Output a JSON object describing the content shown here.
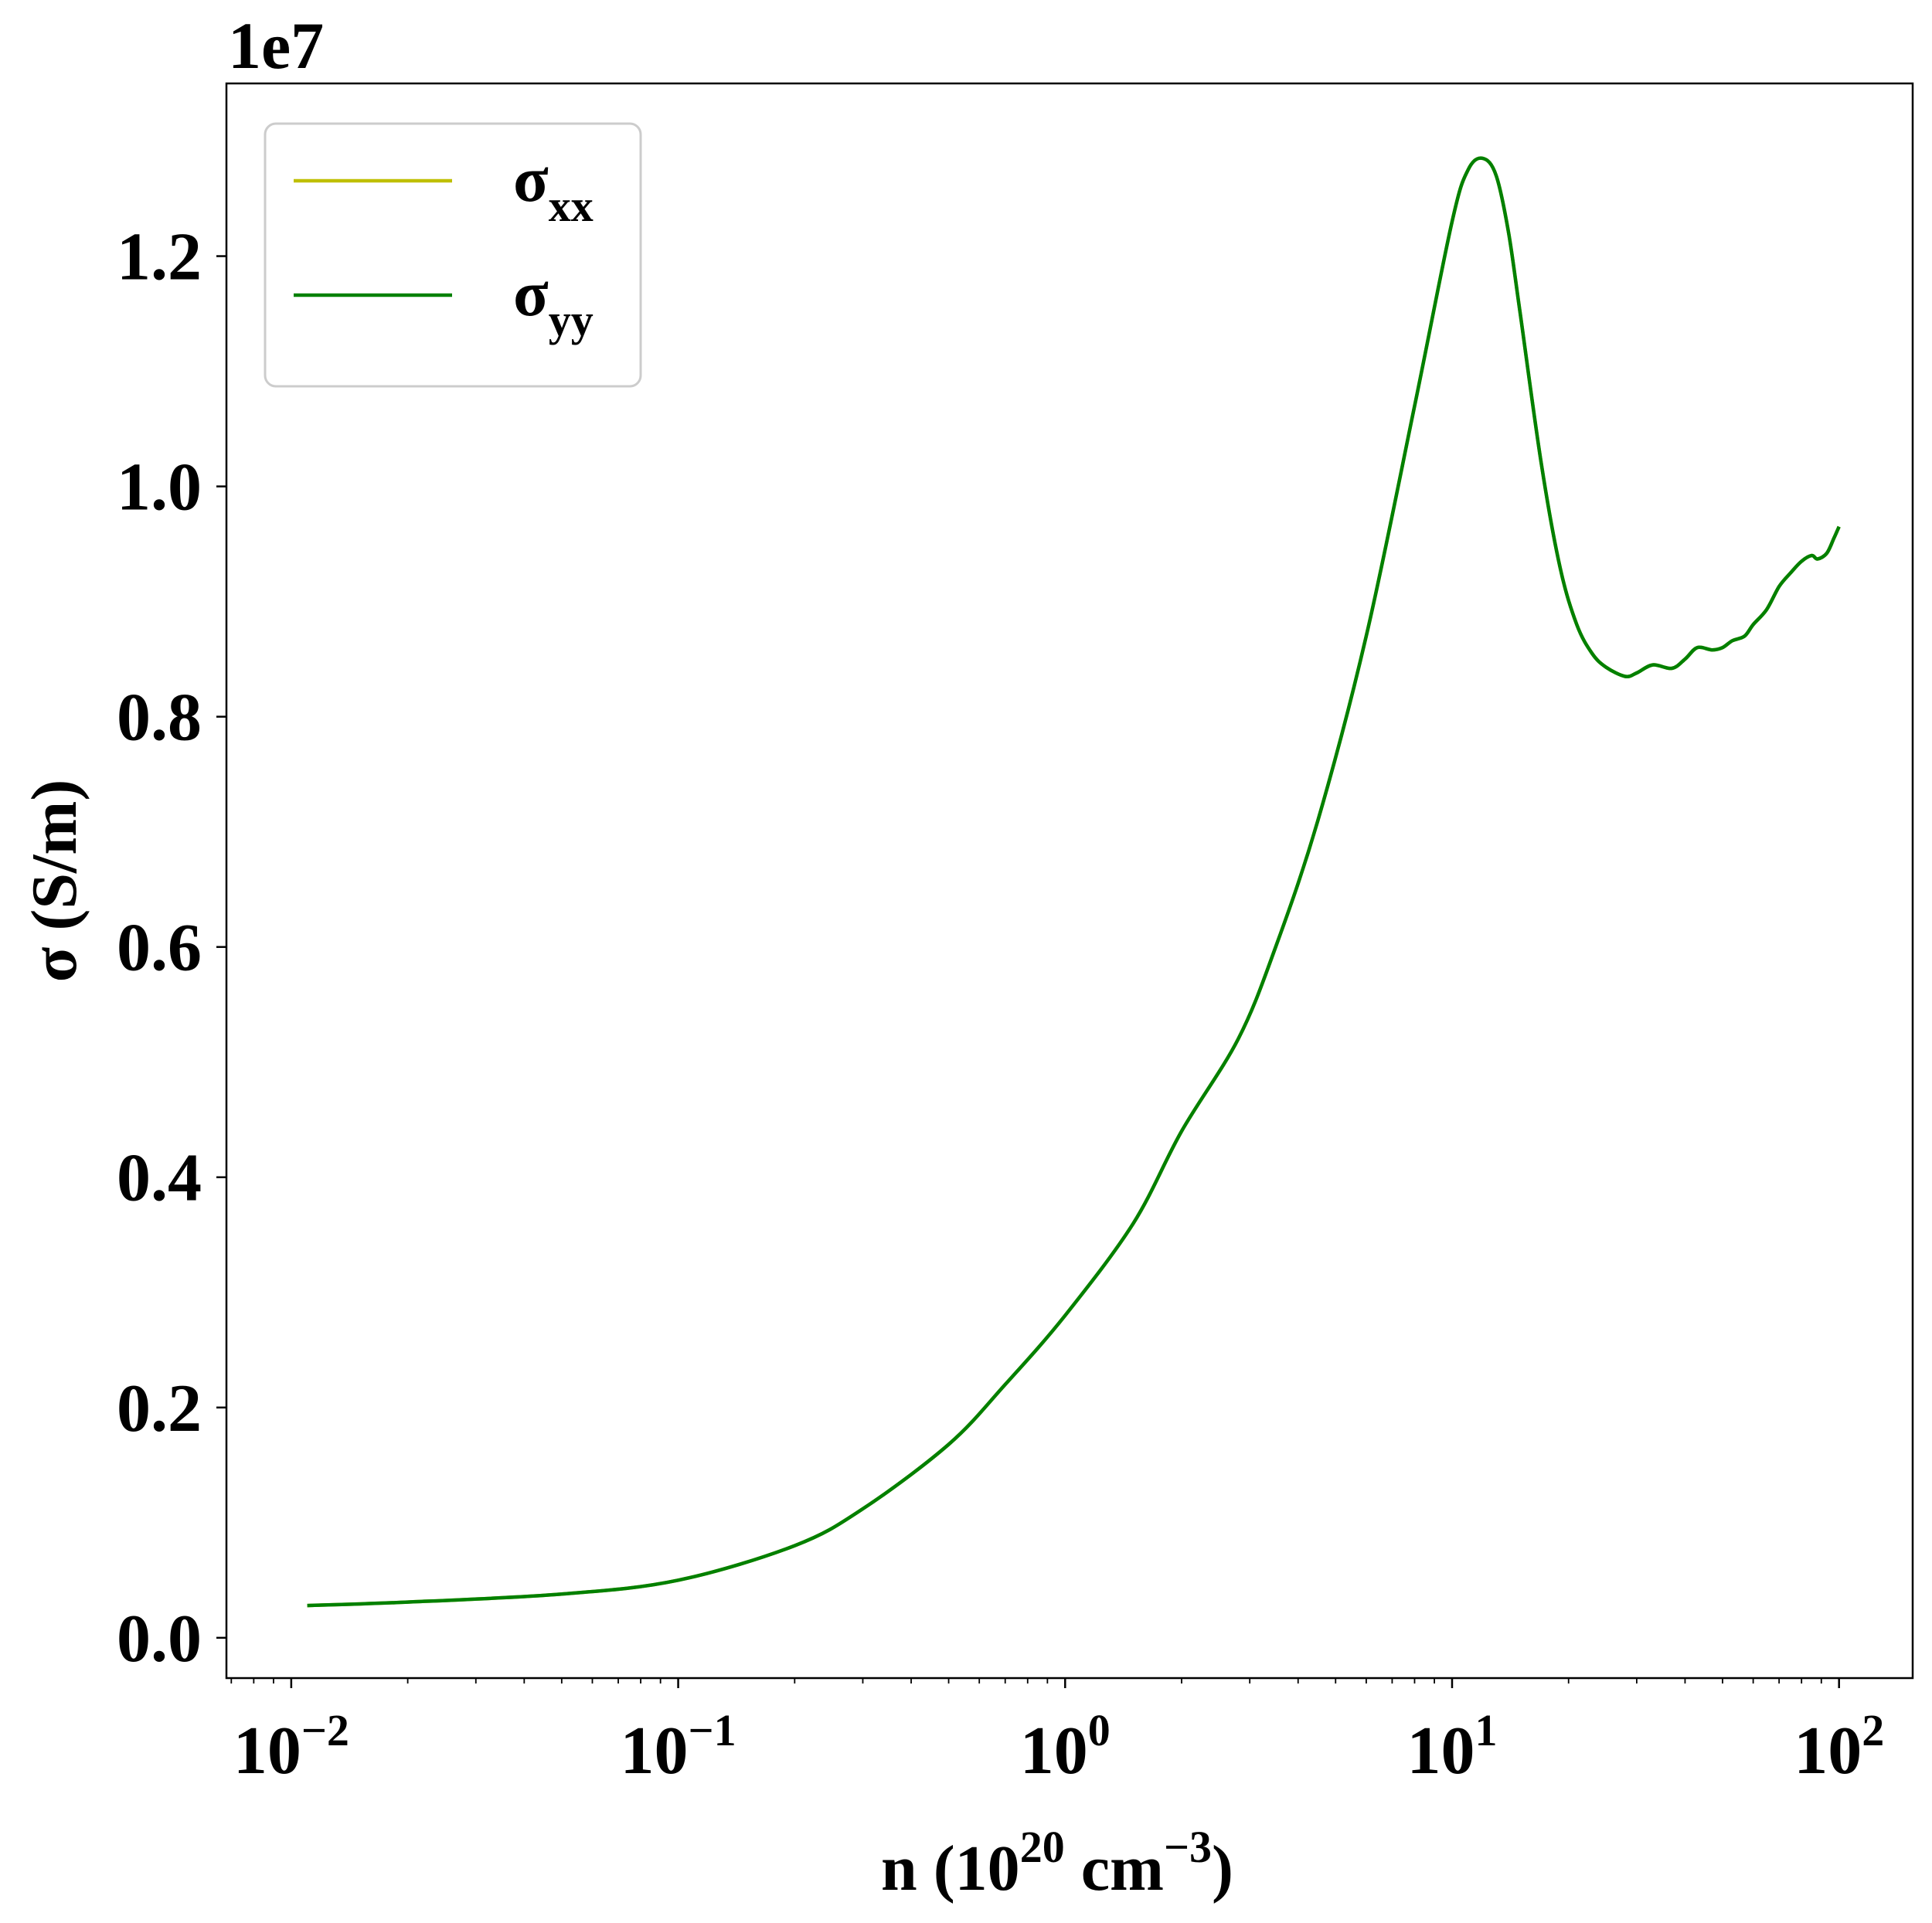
{
  "chart_data": {
    "type": "line",
    "title": "",
    "offset_label": "1e7",
    "xlabel": {
      "prefix": "n (10",
      "exp": "20",
      "middle": " cm",
      "exp2": "−3",
      "suffix": ")"
    },
    "ylabel": "σ (S/m)",
    "xscale": "log",
    "xlim": [
      0.0068,
      155
    ],
    "ylim": [
      -0.035,
      1.35
    ],
    "y_multiplier": 10000000,
    "x_ticks": [
      {
        "value": 0.01,
        "base": "10",
        "exp": "−2"
      },
      {
        "value": 0.1,
        "base": "10",
        "exp": "−1"
      },
      {
        "value": 1,
        "base": "10",
        "exp": "0"
      },
      {
        "value": 10,
        "base": "10",
        "exp": "1"
      },
      {
        "value": 100,
        "base": "10",
        "exp": "2"
      }
    ],
    "y_ticks": [
      {
        "value": 0.0,
        "label": "0.0"
      },
      {
        "value": 0.2,
        "label": "0.2"
      },
      {
        "value": 0.4,
        "label": "0.4"
      },
      {
        "value": 0.6,
        "label": "0.6"
      },
      {
        "value": 0.8,
        "label": "0.8"
      },
      {
        "value": 1.0,
        "label": "1.0"
      },
      {
        "value": 1.2,
        "label": "1.2"
      }
    ],
    "legend": {
      "placement": "top-left"
    },
    "grid": false,
    "series": [
      {
        "name": "σxx",
        "name_base": "σ",
        "name_sub": "xx",
        "color": "#bfbf00",
        "x": [
          0.011,
          0.02,
          0.05,
          0.1,
          0.2,
          0.3,
          0.5,
          0.7,
          1.0,
          1.5,
          2.0,
          2.8,
          3.5,
          4.5,
          6.0,
          8.0,
          10.0,
          11.0,
          12.0,
          13.0,
          14.0,
          15.0,
          17.0,
          19.0,
          21.0,
          23.0,
          25.0,
          28.0,
          30.0,
          33.0,
          37.0,
          40.0,
          43.0,
          47.0,
          50.0,
          53.0,
          57.0,
          60.0,
          65.0,
          70.0,
          75.0,
          80.0,
          85.0,
          88.0,
          93.0,
          97.0,
          100.0
        ],
        "y": [
          0.028,
          0.031,
          0.038,
          0.05,
          0.08,
          0.112,
          0.168,
          0.22,
          0.28,
          0.36,
          0.44,
          0.52,
          0.6,
          0.71,
          0.87,
          1.07,
          1.23,
          1.275,
          1.285,
          1.27,
          1.22,
          1.15,
          1.02,
          0.93,
          0.88,
          0.855,
          0.843,
          0.835,
          0.838,
          0.845,
          0.842,
          0.85,
          0.86,
          0.858,
          0.86,
          0.866,
          0.87,
          0.88,
          0.893,
          0.913,
          0.925,
          0.935,
          0.94,
          0.937,
          0.942,
          0.955,
          0.965
        ]
      },
      {
        "name": "σyy",
        "name_base": "σ",
        "name_sub": "yy",
        "color": "#008000",
        "x": [
          0.011,
          0.02,
          0.05,
          0.1,
          0.2,
          0.3,
          0.5,
          0.7,
          1.0,
          1.5,
          2.0,
          2.8,
          3.5,
          4.5,
          6.0,
          8.0,
          10.0,
          11.0,
          12.0,
          13.0,
          14.0,
          15.0,
          17.0,
          19.0,
          21.0,
          23.0,
          25.0,
          28.0,
          30.0,
          33.0,
          37.0,
          40.0,
          43.0,
          47.0,
          50.0,
          53.0,
          57.0,
          60.0,
          65.0,
          70.0,
          75.0,
          80.0,
          85.0,
          88.0,
          93.0,
          97.0,
          100.0
        ],
        "y": [
          0.028,
          0.031,
          0.038,
          0.05,
          0.08,
          0.112,
          0.168,
          0.22,
          0.28,
          0.36,
          0.44,
          0.52,
          0.6,
          0.71,
          0.87,
          1.07,
          1.23,
          1.275,
          1.285,
          1.27,
          1.22,
          1.15,
          1.02,
          0.93,
          0.88,
          0.855,
          0.843,
          0.835,
          0.838,
          0.845,
          0.842,
          0.85,
          0.86,
          0.858,
          0.86,
          0.866,
          0.87,
          0.88,
          0.893,
          0.913,
          0.925,
          0.935,
          0.94,
          0.937,
          0.942,
          0.955,
          0.965
        ]
      }
    ]
  }
}
